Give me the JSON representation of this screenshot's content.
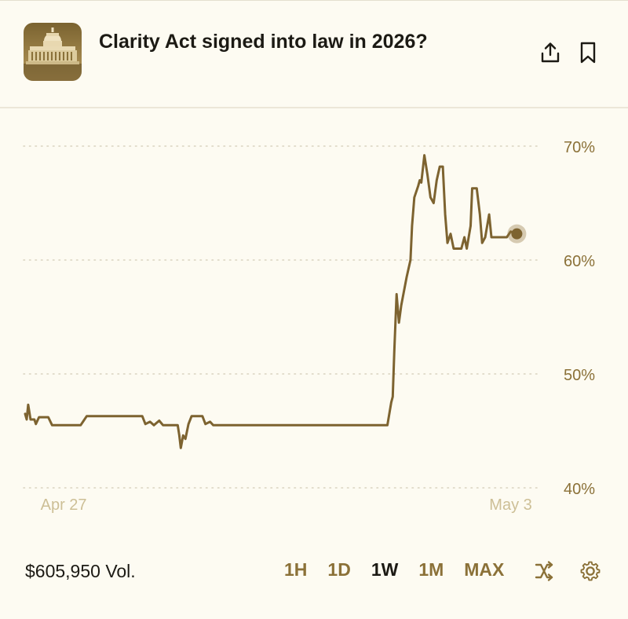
{
  "market": {
    "title": "Clarity Act signed into law in 2026?",
    "thumbnail_icon": "capitol-building-icon"
  },
  "header": {
    "share_icon": "share-icon",
    "bookmark_icon": "bookmark-icon"
  },
  "footer": {
    "volume": "$605,950 Vol.",
    "ranges": [
      "1H",
      "1D",
      "1W",
      "1M",
      "MAX"
    ],
    "active_range": "1W",
    "shuffle_icon": "shuffle-icon",
    "settings_icon": "gear-icon"
  },
  "colors": {
    "line": "#7d6330",
    "accent": "#8b7138",
    "grid": "#d9d3c0",
    "background": "#fdfbf2"
  },
  "chart_data": {
    "type": "line",
    "title": "",
    "xlabel": "",
    "ylabel": "",
    "ylim": [
      40,
      70
    ],
    "y_ticks": [
      70,
      60,
      50,
      40
    ],
    "y_tick_labels": [
      "70%",
      "60%",
      "50%",
      "40%"
    ],
    "x_tick_labels": [
      {
        "label": "Apr 27",
        "x": 0.5
      },
      {
        "label": "May 3",
        "x": 6.3
      }
    ],
    "xlim": [
      0,
      6.6
    ],
    "grid": true,
    "series": [
      {
        "name": "",
        "values": [
          [
            0.0,
            46.5
          ],
          [
            0.02,
            46.0
          ],
          [
            0.04,
            47.3
          ],
          [
            0.07,
            46.0
          ],
          [
            0.12,
            46.0
          ],
          [
            0.14,
            45.6
          ],
          [
            0.18,
            46.2
          ],
          [
            0.3,
            46.2
          ],
          [
            0.35,
            45.5
          ],
          [
            0.72,
            45.5
          ],
          [
            0.76,
            45.9
          ],
          [
            0.8,
            46.3
          ],
          [
            1.52,
            46.3
          ],
          [
            1.56,
            45.6
          ],
          [
            1.62,
            45.8
          ],
          [
            1.67,
            45.5
          ],
          [
            1.74,
            45.9
          ],
          [
            1.79,
            45.5
          ],
          [
            1.98,
            45.5
          ],
          [
            2.0,
            44.6
          ],
          [
            2.02,
            43.5
          ],
          [
            2.05,
            44.6
          ],
          [
            2.08,
            44.3
          ],
          [
            2.12,
            45.6
          ],
          [
            2.16,
            46.3
          ],
          [
            2.3,
            46.3
          ],
          [
            2.34,
            45.6
          ],
          [
            2.4,
            45.8
          ],
          [
            2.44,
            45.5
          ],
          [
            4.7,
            45.5
          ],
          [
            4.75,
            47.5
          ],
          [
            4.77,
            48.0
          ],
          [
            4.79,
            52.0
          ],
          [
            4.82,
            57.0
          ],
          [
            4.85,
            54.5
          ],
          [
            4.88,
            56.0
          ],
          [
            4.95,
            58.5
          ],
          [
            5.0,
            60.0
          ],
          [
            5.02,
            63.0
          ],
          [
            5.05,
            65.5
          ],
          [
            5.1,
            66.5
          ],
          [
            5.12,
            67.0
          ],
          [
            5.14,
            66.8
          ],
          [
            5.18,
            69.2
          ],
          [
            5.22,
            67.5
          ],
          [
            5.26,
            65.5
          ],
          [
            5.3,
            65.0
          ],
          [
            5.34,
            67.0
          ],
          [
            5.38,
            68.2
          ],
          [
            5.42,
            68.2
          ],
          [
            5.45,
            64.0
          ],
          [
            5.48,
            61.5
          ],
          [
            5.52,
            62.3
          ],
          [
            5.56,
            61.0
          ],
          [
            5.66,
            61.0
          ],
          [
            5.7,
            62.0
          ],
          [
            5.73,
            61.0
          ],
          [
            5.78,
            63.0
          ],
          [
            5.8,
            66.3
          ],
          [
            5.86,
            66.3
          ],
          [
            5.9,
            64.0
          ],
          [
            5.93,
            61.5
          ],
          [
            5.97,
            62.0
          ],
          [
            6.02,
            64.0
          ],
          [
            6.05,
            62.0
          ],
          [
            6.25,
            62.0
          ],
          [
            6.3,
            62.5
          ],
          [
            6.38,
            62.3
          ]
        ]
      }
    ]
  }
}
